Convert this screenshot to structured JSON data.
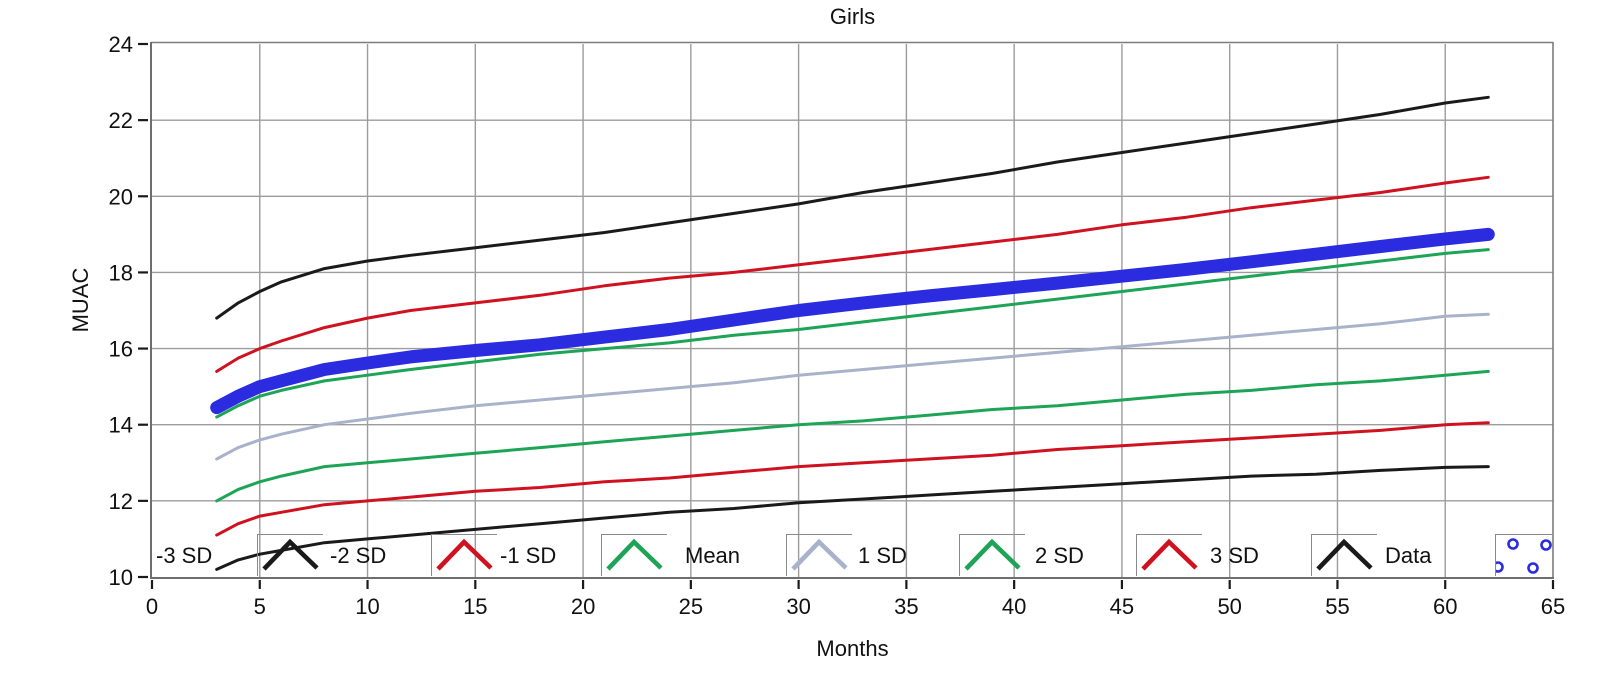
{
  "chart_data": {
    "type": "line",
    "title": "Girls",
    "xlabel": "Months",
    "ylabel": "MUAC",
    "xlim": [
      0,
      65
    ],
    "ylim": [
      10,
      24
    ],
    "x_ticks": [
      0,
      5,
      10,
      15,
      20,
      25,
      30,
      35,
      40,
      45,
      50,
      55,
      60,
      65
    ],
    "y_ticks": [
      10,
      12,
      14,
      16,
      18,
      20,
      22,
      24
    ],
    "grid": true,
    "legend_position": "bottom-inside",
    "x": [
      3,
      4,
      5,
      6,
      8,
      10,
      12,
      15,
      18,
      21,
      24,
      27,
      30,
      33,
      36,
      39,
      42,
      45,
      48,
      51,
      54,
      57,
      60,
      62
    ],
    "series": [
      {
        "name": "-3 SD",
        "color": "#1a1a1a",
        "line_width": 3,
        "values": [
          10.2,
          10.45,
          10.6,
          10.7,
          10.9,
          11.0,
          11.1,
          11.25,
          11.4,
          11.55,
          11.7,
          11.8,
          11.95,
          12.05,
          12.15,
          12.25,
          12.35,
          12.45,
          12.55,
          12.65,
          12.7,
          12.8,
          12.88,
          12.9
        ]
      },
      {
        "name": "-2 SD",
        "color": "#d0111f",
        "line_width": 3,
        "values": [
          11.1,
          11.4,
          11.6,
          11.7,
          11.9,
          12.0,
          12.1,
          12.25,
          12.35,
          12.5,
          12.6,
          12.75,
          12.9,
          13.0,
          13.1,
          13.2,
          13.35,
          13.45,
          13.55,
          13.65,
          13.75,
          13.85,
          14.0,
          14.05
        ]
      },
      {
        "name": "-1 SD",
        "color": "#1da456",
        "line_width": 3,
        "values": [
          12.0,
          12.3,
          12.5,
          12.65,
          12.9,
          13.0,
          13.1,
          13.25,
          13.4,
          13.55,
          13.7,
          13.85,
          14.0,
          14.1,
          14.25,
          14.4,
          14.5,
          14.65,
          14.8,
          14.9,
          15.05,
          15.15,
          15.3,
          15.4
        ]
      },
      {
        "name": "Mean",
        "color": "#a9b2cb",
        "line_width": 3,
        "values": [
          13.1,
          13.4,
          13.6,
          13.75,
          14.0,
          14.15,
          14.3,
          14.5,
          14.65,
          14.8,
          14.95,
          15.1,
          15.3,
          15.45,
          15.6,
          15.75,
          15.9,
          16.05,
          16.2,
          16.35,
          16.5,
          16.65,
          16.85,
          16.9
        ]
      },
      {
        "name": "1 SD",
        "color": "#1da456",
        "line_width": 3,
        "values": [
          14.2,
          14.5,
          14.75,
          14.9,
          15.15,
          15.3,
          15.45,
          15.65,
          15.85,
          16.0,
          16.15,
          16.35,
          16.5,
          16.7,
          16.9,
          17.1,
          17.3,
          17.5,
          17.7,
          17.9,
          18.1,
          18.3,
          18.5,
          18.6
        ]
      },
      {
        "name": "2 SD",
        "color": "#d0111f",
        "line_width": 3,
        "values": [
          15.4,
          15.75,
          16.0,
          16.2,
          16.55,
          16.8,
          17.0,
          17.2,
          17.4,
          17.65,
          17.85,
          18.0,
          18.2,
          18.4,
          18.6,
          18.8,
          19.0,
          19.25,
          19.45,
          19.7,
          19.9,
          20.1,
          20.35,
          20.5
        ]
      },
      {
        "name": "3 SD",
        "color": "#1a1a1a",
        "line_width": 3,
        "values": [
          16.8,
          17.2,
          17.5,
          17.75,
          18.1,
          18.3,
          18.45,
          18.65,
          18.85,
          19.05,
          19.3,
          19.55,
          19.8,
          20.1,
          20.35,
          20.6,
          20.9,
          21.15,
          21.4,
          21.65,
          21.9,
          22.15,
          22.45,
          22.6
        ]
      },
      {
        "name": "Data",
        "color": "#2b2bdf",
        "line_width": 13,
        "values": [
          14.45,
          14.75,
          15.0,
          15.15,
          15.45,
          15.62,
          15.78,
          15.95,
          16.1,
          16.3,
          16.5,
          16.75,
          17.0,
          17.2,
          17.38,
          17.55,
          17.72,
          17.9,
          18.08,
          18.28,
          18.48,
          18.68,
          18.88,
          19.0
        ]
      }
    ],
    "legend": [
      {
        "label": "-3 SD",
        "color": "#1a1a1a",
        "marker": "caret"
      },
      {
        "label": "-2 SD",
        "color": "#d0111f",
        "marker": "caret"
      },
      {
        "label": "-1 SD",
        "color": "#1da456",
        "marker": "caret"
      },
      {
        "label": "Mean",
        "color": "#a9b2cb",
        "marker": "caret"
      },
      {
        "label": "1 SD",
        "color": "#1da456",
        "marker": "caret"
      },
      {
        "label": "2 SD",
        "color": "#d0111f",
        "marker": "caret"
      },
      {
        "label": "3 SD",
        "color": "#1a1a1a",
        "marker": "caret"
      },
      {
        "label": "Data",
        "color": "#2b2bdf",
        "marker": "circles"
      }
    ],
    "colors": {
      "gridline": "#9c9c9c",
      "frame": "#7d7d7d",
      "tick": "#1a1a1a",
      "text": "#111111"
    }
  }
}
